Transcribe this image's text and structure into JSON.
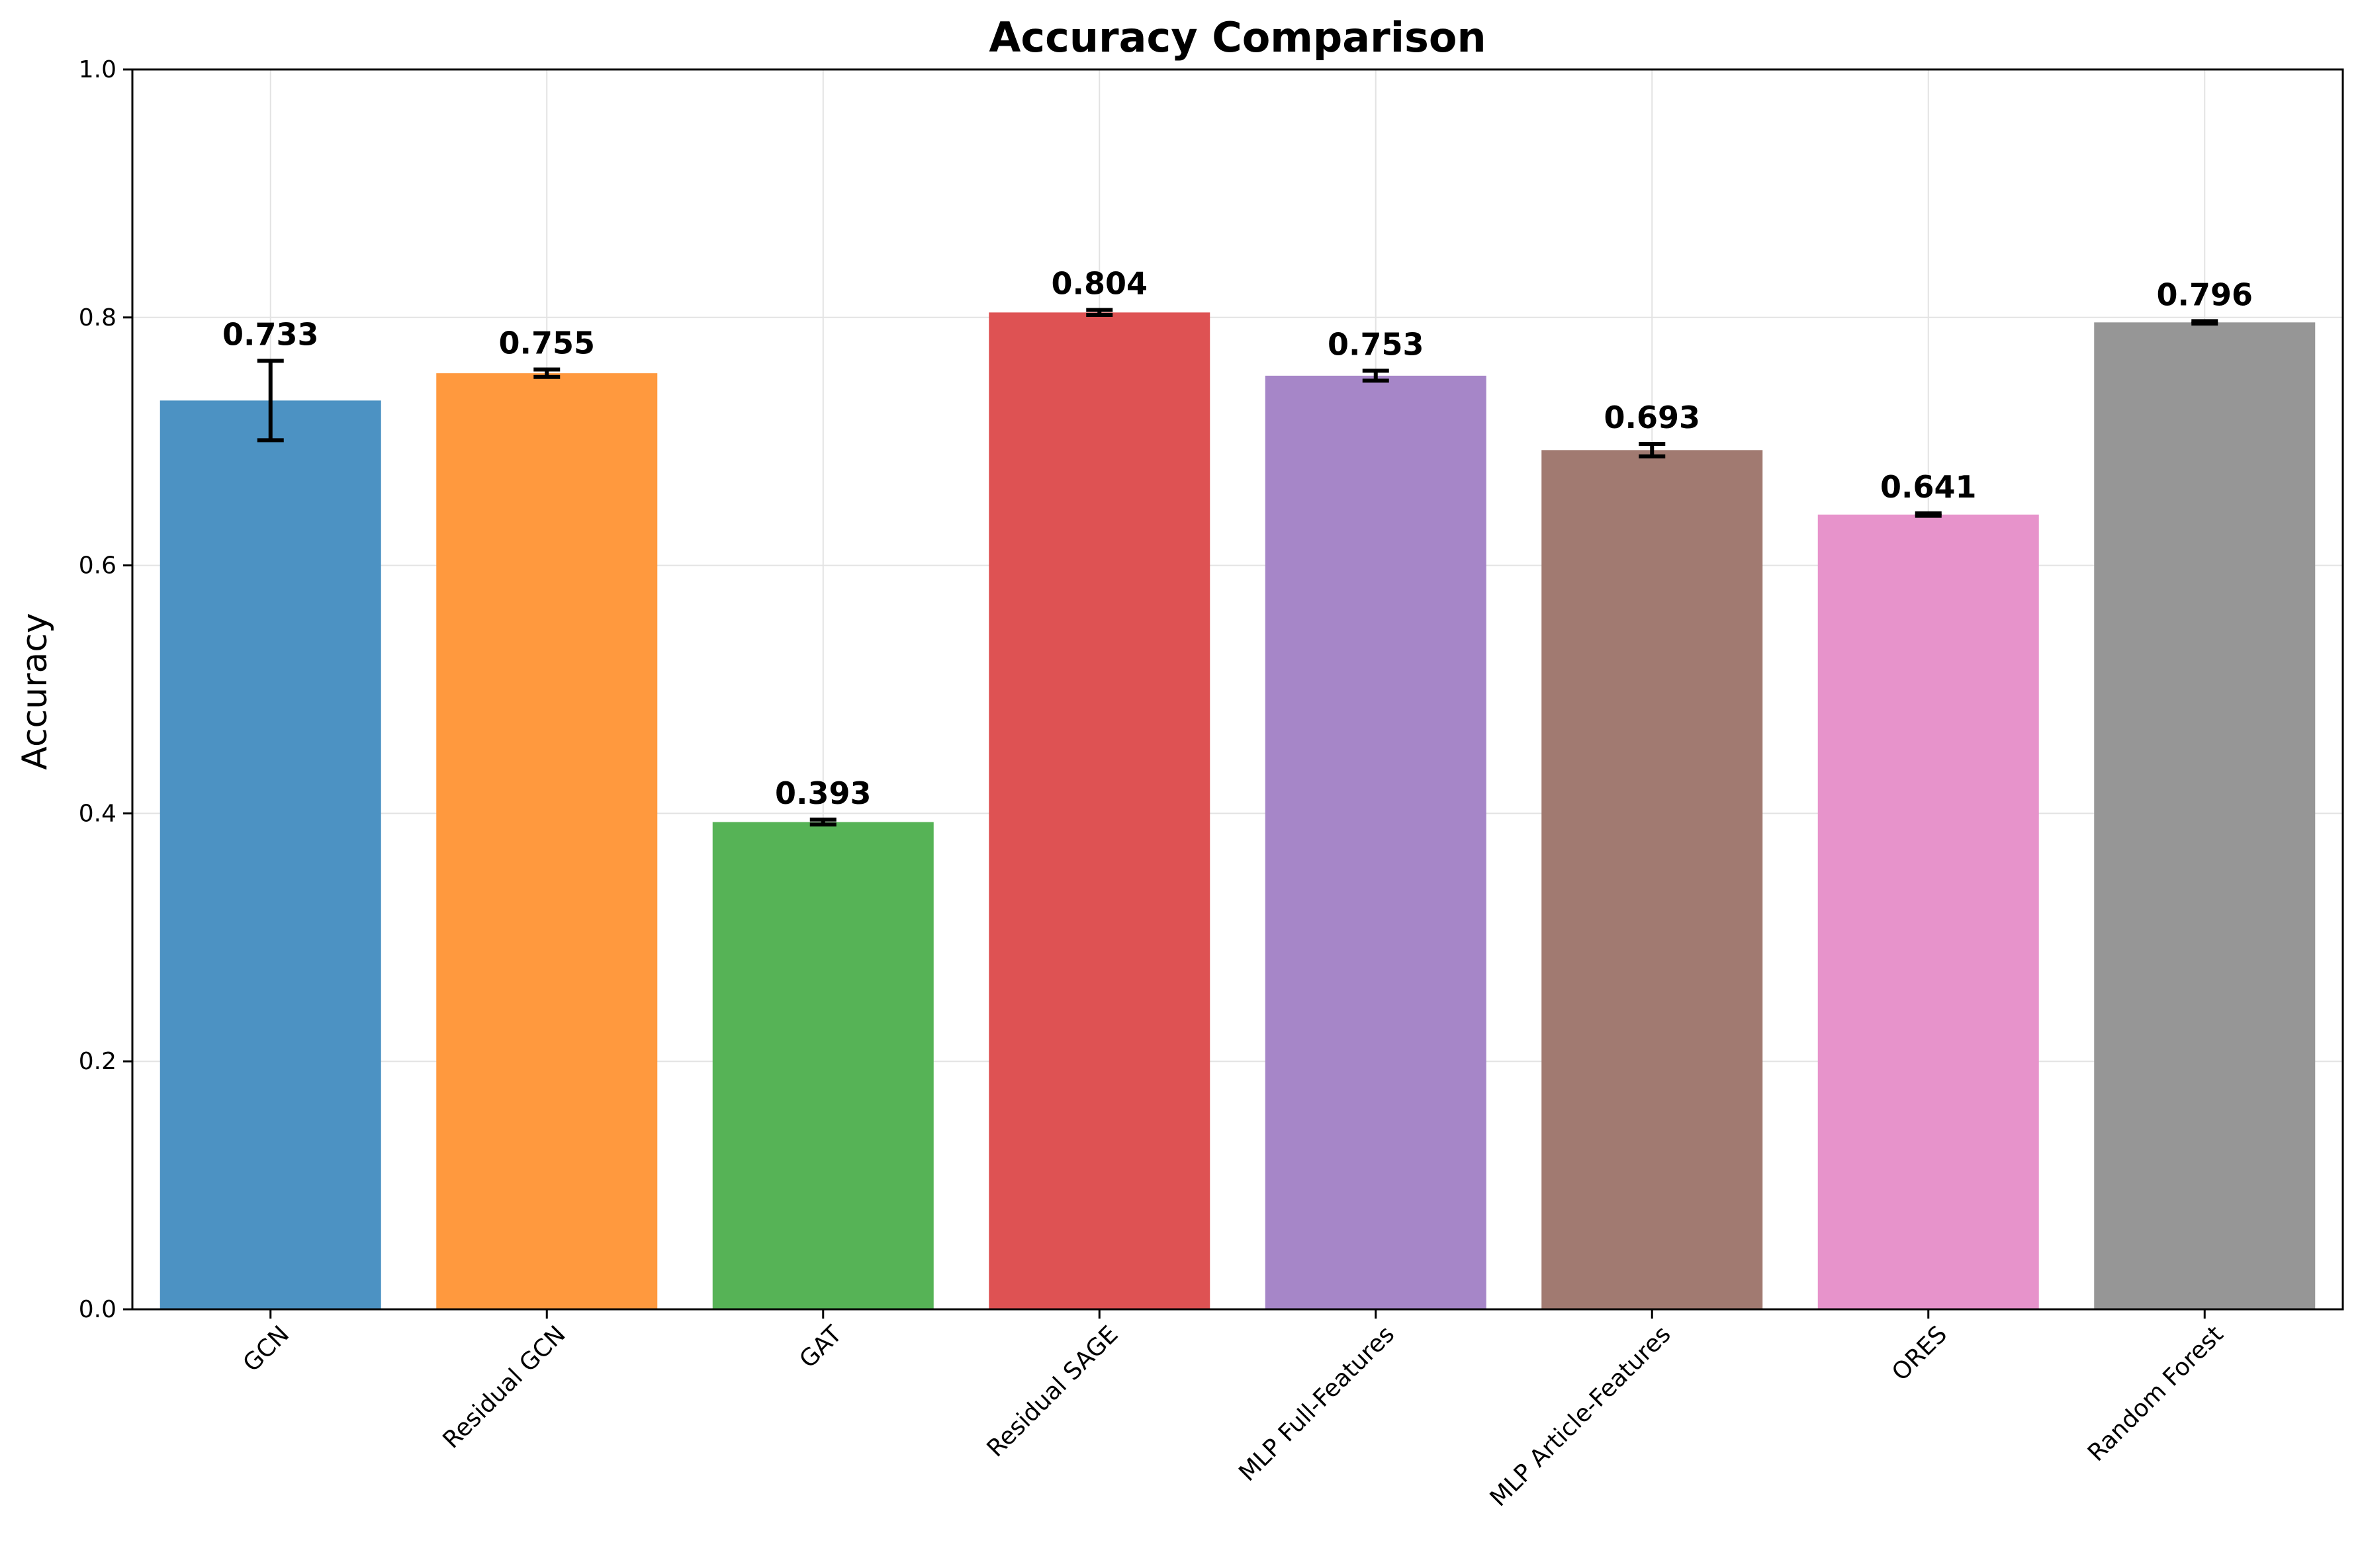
{
  "chart_data": {
    "type": "bar",
    "title": "Accuracy Comparison",
    "xlabel": "",
    "ylabel": "Accuracy",
    "ylim": [
      0,
      1.0
    ],
    "yticks": [
      0.0,
      0.2,
      0.4,
      0.6,
      0.8,
      1.0
    ],
    "ytick_labels": [
      "0.0",
      "0.2",
      "0.4",
      "0.6",
      "0.8",
      "1.0"
    ],
    "grid": true,
    "categories": [
      "GCN",
      "Residual GCN",
      "GAT",
      "Residual SAGE",
      "MLP Full-Features",
      "MLP Article-Features",
      "ORES",
      "Random Forest"
    ],
    "values": [
      0.733,
      0.755,
      0.393,
      0.804,
      0.753,
      0.693,
      0.641,
      0.796
    ],
    "value_labels": [
      "0.733",
      "0.755",
      "0.393",
      "0.804",
      "0.753",
      "0.693",
      "0.641",
      "0.796"
    ],
    "errors": [
      0.032,
      0.003,
      0.002,
      0.002,
      0.004,
      0.005,
      0.001,
      0.001
    ],
    "colors": [
      "#4C92C3",
      "#FF993E",
      "#56B356",
      "#DE5253",
      "#A686C8",
      "#A17A71",
      "#E793CB",
      "#969696"
    ]
  }
}
